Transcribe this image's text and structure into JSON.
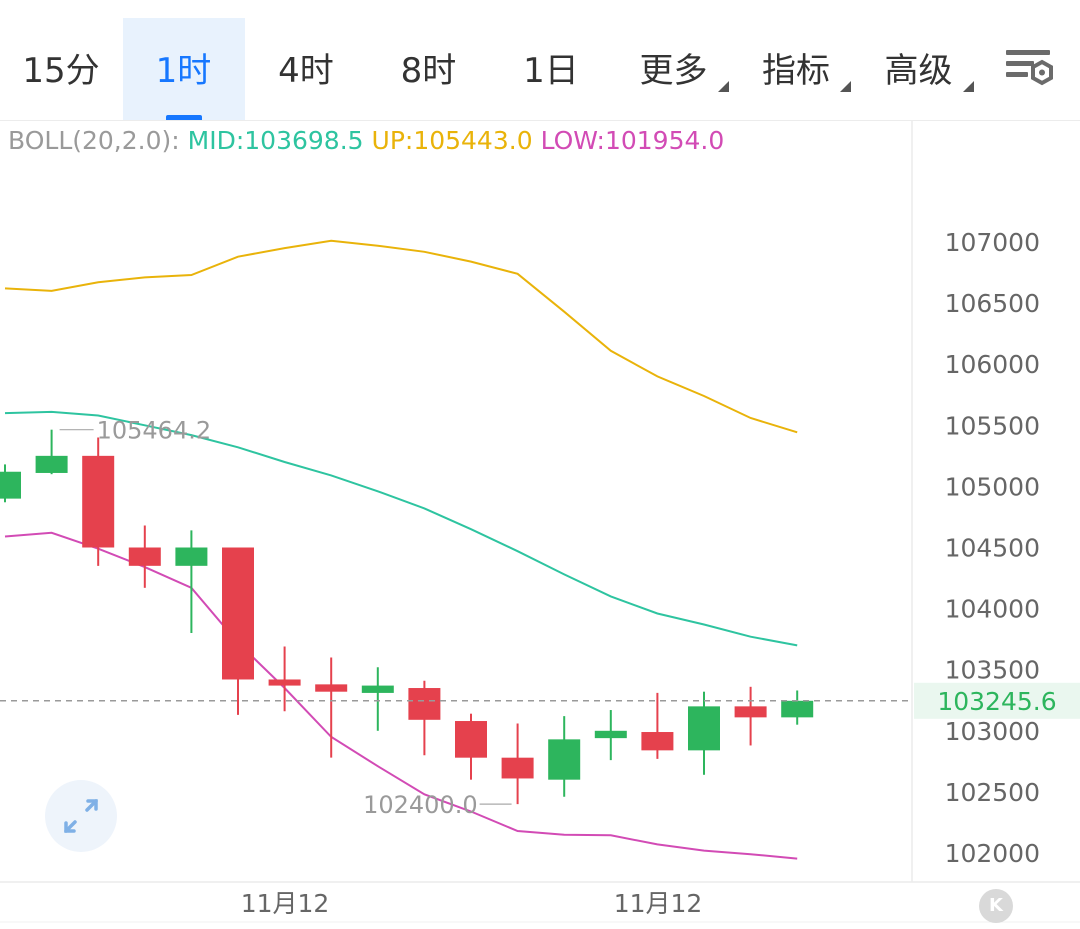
{
  "tabs": [
    {
      "label": "15分",
      "active": false,
      "dropdown": false
    },
    {
      "label": "1时",
      "active": true,
      "dropdown": false
    },
    {
      "label": "4时",
      "active": false,
      "dropdown": false
    },
    {
      "label": "8时",
      "active": false,
      "dropdown": false
    },
    {
      "label": "1日",
      "active": false,
      "dropdown": false
    },
    {
      "label": "更多",
      "active": false,
      "dropdown": true
    },
    {
      "label": "指标",
      "active": false,
      "dropdown": true
    },
    {
      "label": "高级",
      "active": false,
      "dropdown": true
    }
  ],
  "settings_icon": "chart-settings-icon",
  "legend": {
    "prefix": "BOLL(20,2.0):",
    "mid": "MID:103698.5",
    "up": "UP:105443.0",
    "low": "LOW:101954.0"
  },
  "colors": {
    "up_candle": "#2db55d",
    "down_candle": "#e5414d",
    "boll_mid": "#2ec4a0",
    "boll_up": "#e9b30a",
    "boll_low": "#d24bb5",
    "accent": "#1677ff",
    "axis_text": "#666666",
    "last_price": "#2db55d"
  },
  "chart_data": {
    "type": "candlestick",
    "y_ticks": [
      107000,
      106500,
      106000,
      105500,
      105000,
      104500,
      104000,
      103500,
      103000,
      102500,
      102000
    ],
    "ylim": [
      101900,
      107300
    ],
    "x_tick_labels": [
      "11月12",
      "11月12"
    ],
    "last_price": "103245.6",
    "high_marker": "105464.2",
    "low_marker": "102400.0",
    "candles": [
      {
        "open": 104900,
        "close": 105120,
        "high": 105180,
        "low": 104870
      },
      {
        "open": 105110,
        "close": 105250,
        "high": 105464.2,
        "low": 105100
      },
      {
        "open": 105250,
        "close": 104500,
        "high": 105400,
        "low": 104350
      },
      {
        "open": 104500,
        "close": 104350,
        "high": 104680,
        "low": 104170
      },
      {
        "open": 104350,
        "close": 104500,
        "high": 104640,
        "low": 103800
      },
      {
        "open": 104500,
        "close": 103420,
        "high": 104500,
        "low": 103130
      },
      {
        "open": 103420,
        "close": 103370,
        "high": 103690,
        "low": 103160
      },
      {
        "open": 103380,
        "close": 103320,
        "high": 103600,
        "low": 102780
      },
      {
        "open": 103310,
        "close": 103370,
        "high": 103520,
        "low": 103000
      },
      {
        "open": 103350,
        "close": 103090,
        "high": 103410,
        "low": 102800
      },
      {
        "open": 103080,
        "close": 102780,
        "high": 103140,
        "low": 102600
      },
      {
        "open": 102780,
        "close": 102610,
        "high": 103060,
        "low": 102400
      },
      {
        "open": 102600,
        "close": 102930,
        "high": 103120,
        "low": 102460
      },
      {
        "open": 102940,
        "close": 103000,
        "high": 103170,
        "low": 102760
      },
      {
        "open": 102990,
        "close": 102840,
        "high": 103310,
        "low": 102770
      },
      {
        "open": 102840,
        "close": 103200,
        "high": 103320,
        "low": 102640
      },
      {
        "open": 103200,
        "close": 103110,
        "high": 103360,
        "low": 102880
      },
      {
        "open": 103110,
        "close": 103245.6,
        "high": 103330,
        "low": 103050
      }
    ],
    "series": [
      {
        "name": "UP",
        "values": [
          106620,
          106600,
          106670,
          106710,
          106730,
          106880,
          106950,
          107010,
          106970,
          106920,
          106840,
          106740,
          106430,
          106110,
          105900,
          105740,
          105560,
          105443
        ]
      },
      {
        "name": "MID",
        "values": [
          105600,
          105610,
          105580,
          105500,
          105420,
          105320,
          105200,
          105090,
          104960,
          104820,
          104650,
          104470,
          104280,
          104100,
          103960,
          103870,
          103770,
          103698.5
        ]
      },
      {
        "name": "LOW",
        "values": [
          104590,
          104620,
          104490,
          104340,
          104170,
          103720,
          103350,
          102950,
          102710,
          102480,
          102340,
          102180,
          102150,
          102145,
          102070,
          102020,
          101990,
          101954
        ]
      }
    ]
  }
}
